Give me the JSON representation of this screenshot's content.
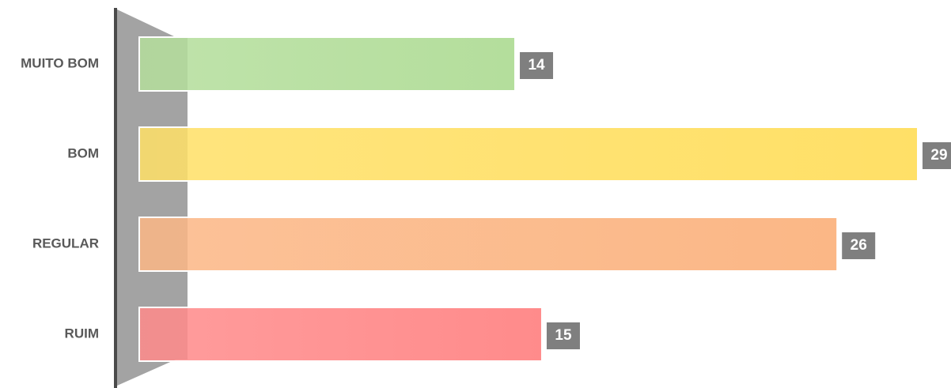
{
  "chart_data": {
    "type": "bar",
    "orientation": "horizontal",
    "categories": [
      "MUITO BOM",
      "BOM",
      "REGULAR",
      "RUIM"
    ],
    "values": [
      14,
      29,
      26,
      15
    ],
    "colors": [
      "#b4de9c",
      "#ffe067",
      "#fbb786",
      "#ff8b8b"
    ]
  }
}
